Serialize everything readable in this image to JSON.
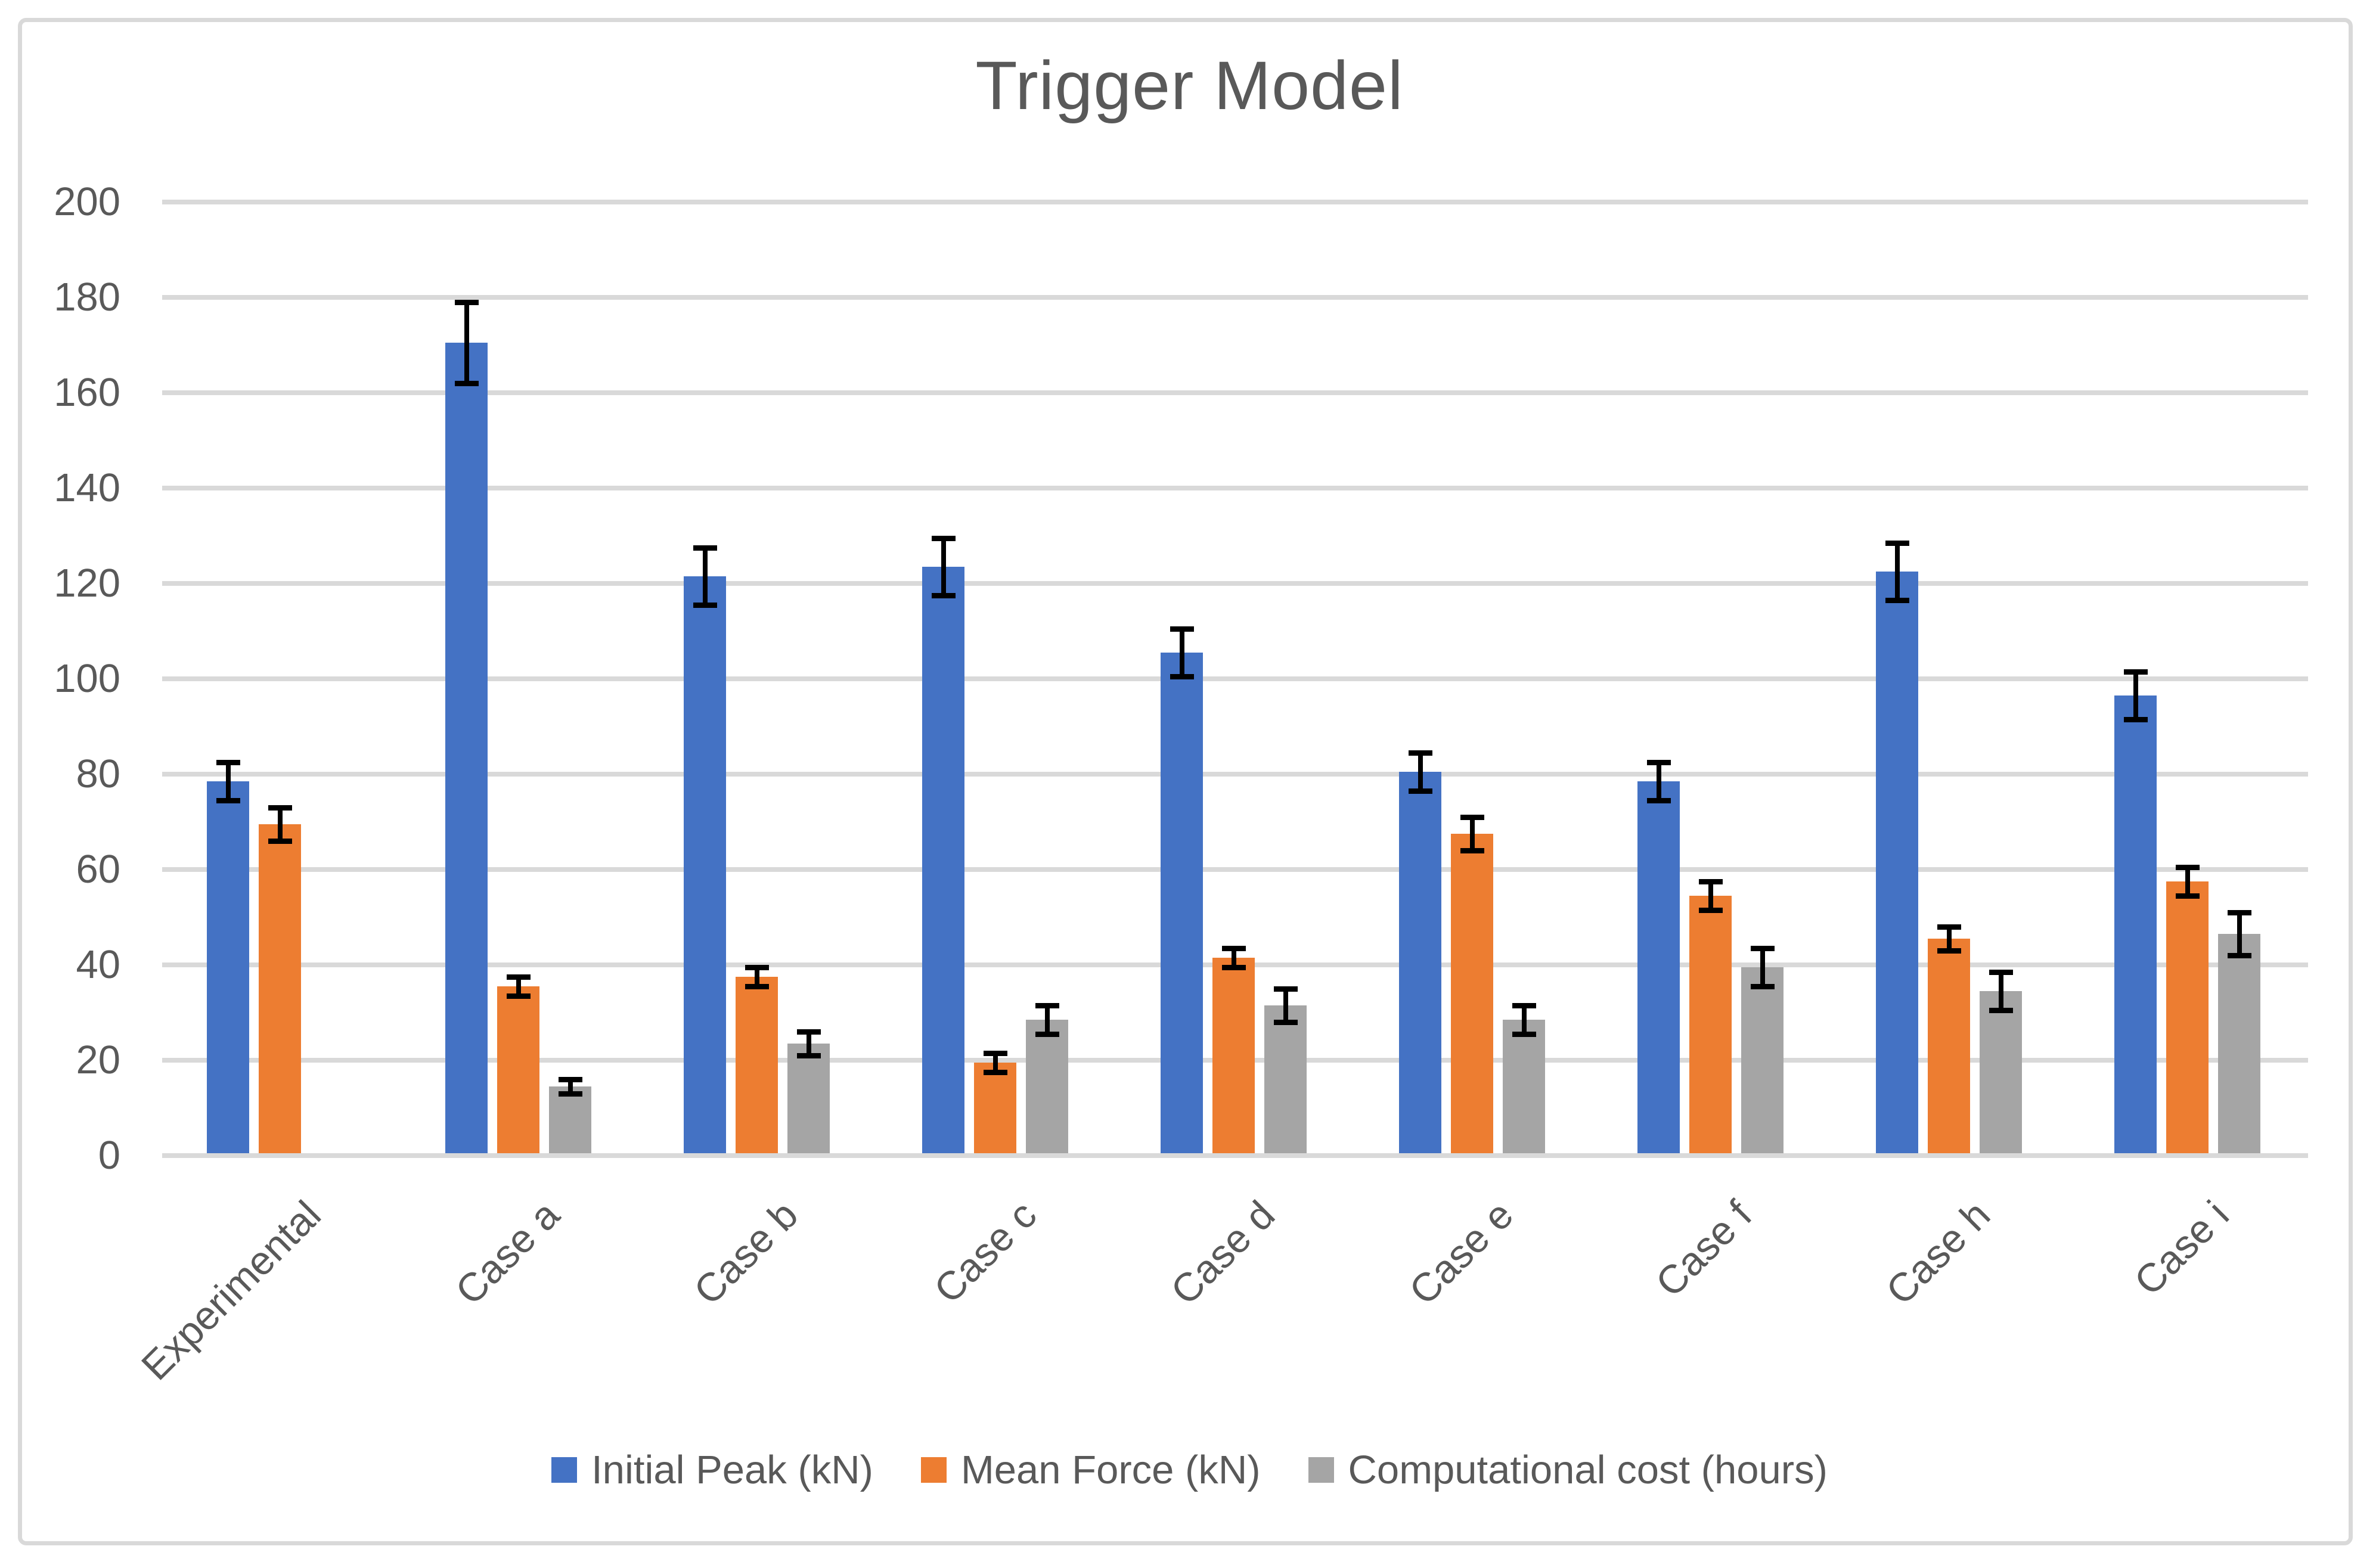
{
  "title": "Trigger Model",
  "colors": {
    "initial_peak": "#4472C4",
    "mean_force": "#ED7D31",
    "computational_cost": "#A5A5A5",
    "gridline": "#D9D9D9",
    "border": "#D9D9D9",
    "text": "#595959",
    "error_bar": "#000000",
    "background": "#FFFFFF"
  },
  "legend": {
    "items": [
      {
        "label": "Initial Peak (kN)",
        "color": "#4472C4"
      },
      {
        "label": "Mean Force (kN)",
        "color": "#ED7D31"
      },
      {
        "label": "Computational cost (hours)",
        "color": "#A5A5A5"
      }
    ]
  },
  "chart_data": {
    "type": "bar",
    "title": "Trigger Model",
    "categories": [
      "Experimental",
      "Case a",
      "Case b",
      "Case c",
      "Case d",
      "Case e",
      "Case f",
      "Case h",
      "Case i"
    ],
    "series": [
      {
        "name": "Initial Peak (kN)",
        "color": "#4472C4",
        "values": [
          78,
          170,
          121,
          123,
          105,
          80,
          78,
          122,
          96
        ],
        "errors": [
          4,
          8.5,
          6,
          6,
          5,
          4,
          4,
          6,
          5
        ]
      },
      {
        "name": "Mean Force (kN)",
        "color": "#ED7D31",
        "values": [
          69,
          35,
          37,
          19,
          41,
          67,
          54,
          45,
          57
        ],
        "errors": [
          3.5,
          2,
          2,
          2,
          2,
          3.5,
          3,
          2.5,
          3
        ]
      },
      {
        "name": "Computational cost (hours)",
        "color": "#A5A5A5",
        "values": [
          null,
          14,
          23,
          28,
          31,
          28,
          39,
          34,
          46
        ],
        "errors": [
          null,
          1.5,
          2.5,
          3,
          3.5,
          3,
          4,
          4,
          4.5
        ]
      }
    ],
    "xlabel": "",
    "ylabel": "",
    "ylim": [
      0,
      200
    ],
    "yticks": [
      0,
      20,
      40,
      60,
      80,
      100,
      120,
      140,
      160,
      180,
      200
    ],
    "grid": true,
    "error_bars": true,
    "legend_position": "bottom"
  }
}
